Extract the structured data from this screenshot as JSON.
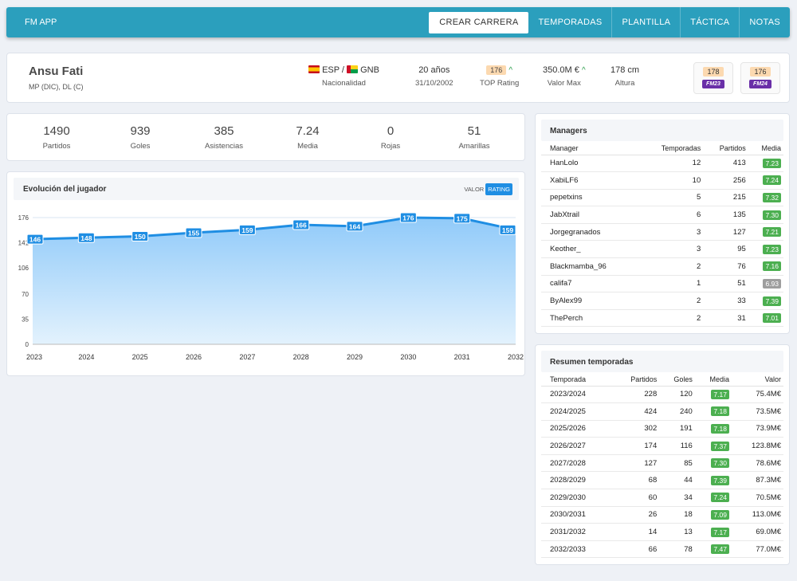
{
  "app": {
    "title": "FM APP"
  },
  "nav": {
    "items": [
      {
        "label": "CREAR CARRERA",
        "active": true
      },
      {
        "label": "TEMPORADAS",
        "active": false
      },
      {
        "label": "PLANTILLA",
        "active": false
      },
      {
        "label": "TÁCTICA",
        "active": false
      },
      {
        "label": "NOTAS",
        "active": false
      }
    ]
  },
  "player": {
    "name": "Ansu Fati",
    "positions": "MP (DIC), DL (C)",
    "nationality": {
      "value": "ESP / GNB",
      "esp": "ESP",
      "sep": " / ",
      "gnb": "GNB",
      "label": "Nacionalidad"
    },
    "age": {
      "value": "20 años",
      "label": "31/10/2002"
    },
    "top_rating": {
      "value": "176",
      "label": "TOP Rating"
    },
    "max_value": {
      "value": "350.0M €",
      "label": "Valor Max"
    },
    "height": {
      "value": "178 cm",
      "label": "Altura"
    },
    "fm23": {
      "rating": "178",
      "label": "FM23"
    },
    "fm24": {
      "rating": "176",
      "label": "FM24"
    }
  },
  "stats": [
    {
      "value": "1490",
      "label": "Partidos"
    },
    {
      "value": "939",
      "label": "Goles"
    },
    {
      "value": "385",
      "label": "Asistencias"
    },
    {
      "value": "7.24",
      "label": "Media"
    },
    {
      "value": "0",
      "label": "Rojas"
    },
    {
      "value": "51",
      "label": "Amarillas"
    }
  ],
  "chart": {
    "title": "Evolución del jugador",
    "toggle": {
      "valor": "VALOR",
      "rating": "RATING"
    }
  },
  "chart_data": {
    "type": "area",
    "x": [
      "2023",
      "2024",
      "2025",
      "2026",
      "2027",
      "2028",
      "2029",
      "2030",
      "2031",
      "2032"
    ],
    "values": [
      146,
      148,
      150,
      155,
      159,
      166,
      164,
      176,
      175,
      159
    ],
    "yticks": [
      0,
      35,
      70,
      106,
      141,
      176
    ],
    "ylim": [
      0,
      176
    ],
    "title": "Evolución del jugador",
    "xlabel": "",
    "ylabel": "",
    "grid": true,
    "colors": {
      "line": "#1f8ee3",
      "fill_top": "#90caf9",
      "fill_bottom": "#e3f2fd",
      "label_bg": "#1f8ee3"
    }
  },
  "managers": {
    "title": "Managers",
    "columns": [
      "Manager",
      "Temporadas",
      "Partidos",
      "Media"
    ],
    "rows": [
      {
        "name": "HanLolo",
        "seasons": "12",
        "matches": "413",
        "avg": "7.23",
        "grey": false
      },
      {
        "name": "XabiLF6",
        "seasons": "10",
        "matches": "256",
        "avg": "7.24",
        "grey": false
      },
      {
        "name": "pepetxins",
        "seasons": "5",
        "matches": "215",
        "avg": "7.32",
        "grey": false
      },
      {
        "name": "JabXtrail",
        "seasons": "6",
        "matches": "135",
        "avg": "7.30",
        "grey": false
      },
      {
        "name": "Jorgegranados",
        "seasons": "3",
        "matches": "127",
        "avg": "7.21",
        "grey": false
      },
      {
        "name": "Keother_",
        "seasons": "3",
        "matches": "95",
        "avg": "7.23",
        "grey": false
      },
      {
        "name": "Blackmamba_96",
        "seasons": "2",
        "matches": "76",
        "avg": "7.16",
        "grey": false
      },
      {
        "name": "califa7",
        "seasons": "1",
        "matches": "51",
        "avg": "6.93",
        "grey": true
      },
      {
        "name": "ByAlex99",
        "seasons": "2",
        "matches": "33",
        "avg": "7.39",
        "grey": false
      },
      {
        "name": "ThePerch",
        "seasons": "2",
        "matches": "31",
        "avg": "7.01",
        "grey": false
      }
    ]
  },
  "seasons": {
    "title": "Resumen temporadas",
    "columns": [
      "Temporada",
      "Partidos",
      "Goles",
      "Media",
      "Valor"
    ],
    "rows": [
      {
        "season": "2023/2024",
        "matches": "228",
        "goals": "120",
        "avg": "7.17",
        "value": "75.4M€"
      },
      {
        "season": "2024/2025",
        "matches": "424",
        "goals": "240",
        "avg": "7.18",
        "value": "73.5M€"
      },
      {
        "season": "2025/2026",
        "matches": "302",
        "goals": "191",
        "avg": "7.18",
        "value": "73.9M€"
      },
      {
        "season": "2026/2027",
        "matches": "174",
        "goals": "116",
        "avg": "7.37",
        "value": "123.8M€"
      },
      {
        "season": "2027/2028",
        "matches": "127",
        "goals": "85",
        "avg": "7.30",
        "value": "78.6M€"
      },
      {
        "season": "2028/2029",
        "matches": "68",
        "goals": "44",
        "avg": "7.39",
        "value": "87.3M€"
      },
      {
        "season": "2029/2030",
        "matches": "60",
        "goals": "34",
        "avg": "7.24",
        "value": "70.5M€"
      },
      {
        "season": "2030/2031",
        "matches": "26",
        "goals": "18",
        "avg": "7.09",
        "value": "113.0M€"
      },
      {
        "season": "2031/2032",
        "matches": "14",
        "goals": "13",
        "avg": "7.17",
        "value": "69.0M€"
      },
      {
        "season": "2032/2033",
        "matches": "66",
        "goals": "78",
        "avg": "7.47",
        "value": "77.0M€"
      }
    ]
  }
}
